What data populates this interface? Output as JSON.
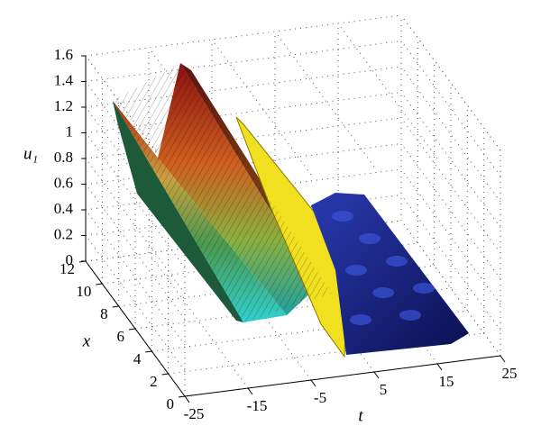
{
  "chart_data": {
    "type": "surface3d",
    "zlabel": "u₁",
    "xlabel": "t",
    "ylabel": "x",
    "xlim": [
      -25,
      25
    ],
    "xticks": [
      -25,
      -15,
      -5,
      5,
      15,
      25
    ],
    "ylim": [
      0,
      12
    ],
    "yticks": [
      0,
      2,
      4,
      6,
      8,
      10,
      12
    ],
    "zlim": [
      0,
      1.6
    ],
    "zticks": [
      0,
      0.2,
      0.4,
      0.6,
      0.8,
      1,
      1.2,
      1.4,
      1.6
    ],
    "grid": true
  }
}
